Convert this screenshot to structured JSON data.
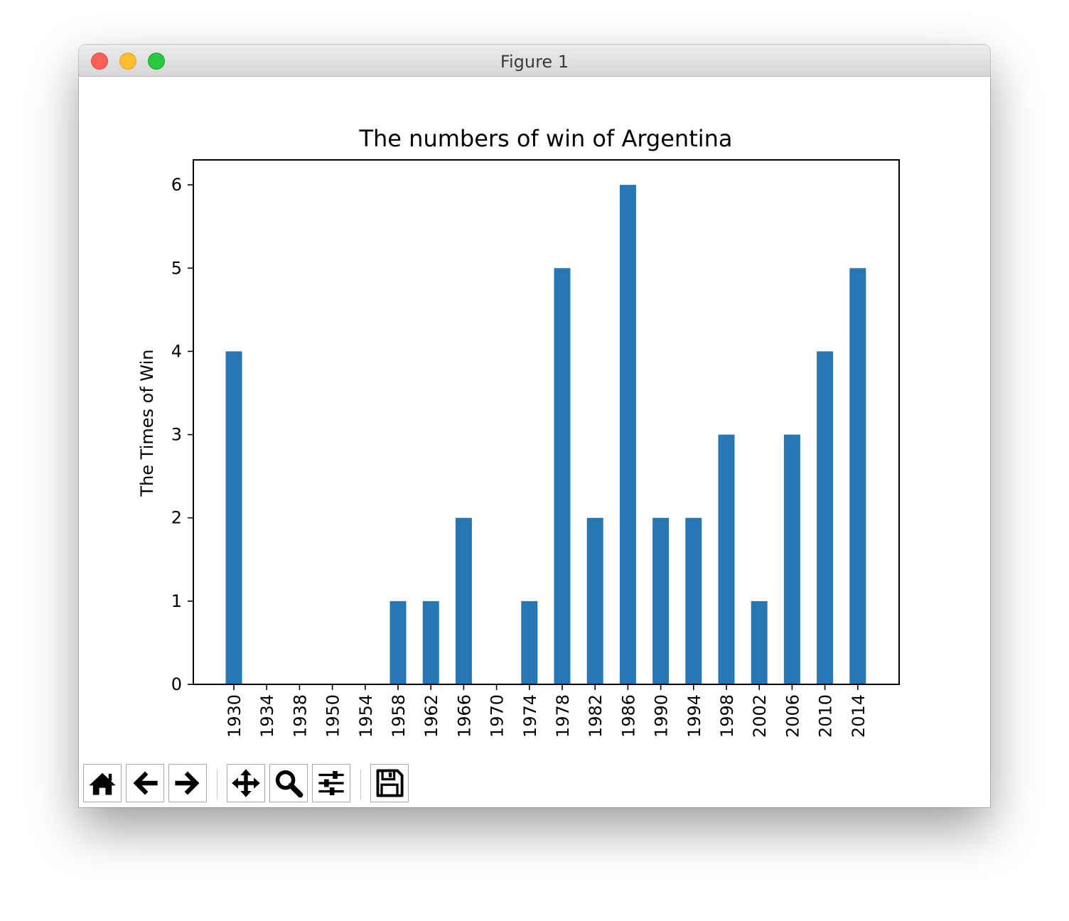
{
  "window": {
    "title": "Figure 1"
  },
  "chart_data": {
    "type": "bar",
    "title": "The numbers of win of Argentina",
    "xlabel": "",
    "ylabel": "The Times of Win",
    "categories": [
      "1930",
      "1934",
      "1938",
      "1950",
      "1954",
      "1958",
      "1962",
      "1966",
      "1970",
      "1974",
      "1978",
      "1982",
      "1986",
      "1990",
      "1994",
      "1998",
      "2002",
      "2006",
      "2010",
      "2014"
    ],
    "values": [
      4,
      0,
      0,
      0,
      0,
      1,
      1,
      2,
      0,
      1,
      5,
      2,
      6,
      2,
      2,
      3,
      1,
      3,
      4,
      5
    ],
    "ylim": [
      0,
      6.3
    ],
    "yticks": [
      0,
      1,
      2,
      3,
      4,
      5,
      6
    ],
    "bar_color": "#2777b4",
    "grid": false,
    "legend": "none"
  },
  "toolbar": {
    "items": [
      {
        "name": "home-button",
        "icon": "home-icon"
      },
      {
        "name": "back-button",
        "icon": "arrow-left-icon"
      },
      {
        "name": "forward-button",
        "icon": "arrow-right-icon"
      },
      {
        "name": "pan-button",
        "icon": "move-icon"
      },
      {
        "name": "zoom-button",
        "icon": "magnifier-icon"
      },
      {
        "name": "configure-subplots-button",
        "icon": "sliders-icon"
      },
      {
        "name": "save-button",
        "icon": "floppy-disk-icon"
      }
    ]
  }
}
